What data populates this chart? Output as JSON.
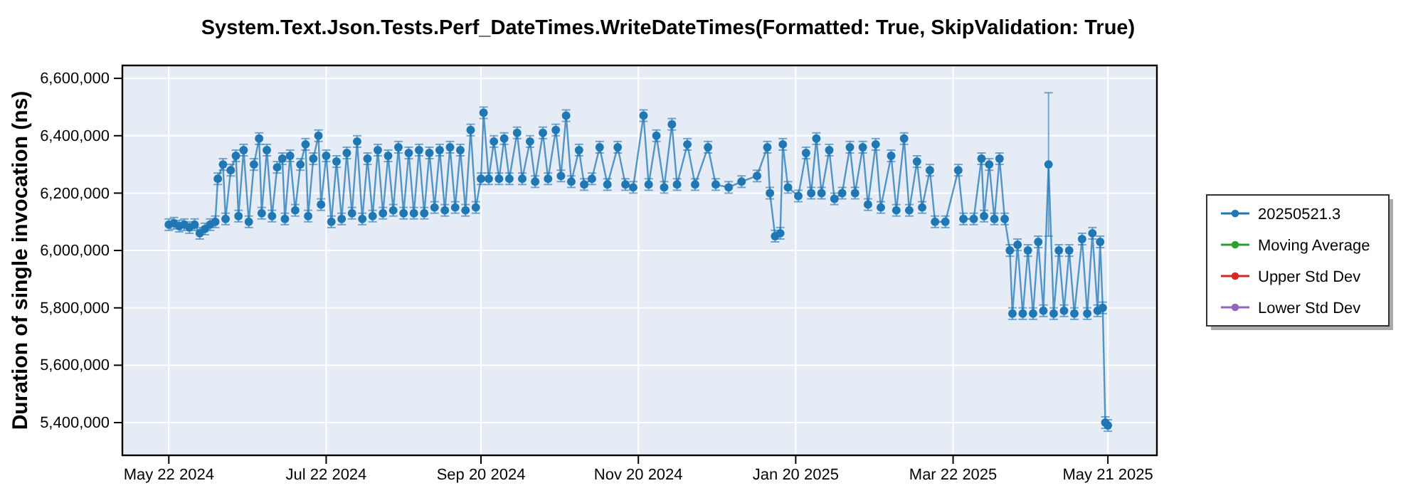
{
  "chart_data": {
    "type": "line",
    "title": "System.Text.Json.Tests.Perf_DateTimes.WriteDateTimes(Formatted: True, SkipValidation: True)",
    "ylabel": "Duration of single invocation (ns)",
    "xlim": [
      "2024-05-04",
      "2025-06-09"
    ],
    "xticks": [
      {
        "value": "2024-05-22",
        "label": "May 22 2024"
      },
      {
        "value": "2024-07-22",
        "label": "Jul 22 2024"
      },
      {
        "value": "2024-09-20",
        "label": "Sep 20 2024"
      },
      {
        "value": "2024-11-20",
        "label": "Nov 20 2024"
      },
      {
        "value": "2025-01-20",
        "label": "Jan 20 2025"
      },
      {
        "value": "2025-03-22",
        "label": "Mar 22 2025"
      },
      {
        "value": "2025-05-21",
        "label": "May 21 2025"
      }
    ],
    "ylim": [
      5286000,
      6645000
    ],
    "yticks": [
      {
        "value": 5400000,
        "label": "5,400,000"
      },
      {
        "value": 5600000,
        "label": "5,600,000"
      },
      {
        "value": 5800000,
        "label": "5,800,000"
      },
      {
        "value": 6000000,
        "label": "6,000,000"
      },
      {
        "value": 6200000,
        "label": "6,200,000"
      },
      {
        "value": 6400000,
        "label": "6,400,000"
      },
      {
        "value": 6600000,
        "label": "6,600,000"
      }
    ],
    "grid": true,
    "legend": "right",
    "marker": "circle",
    "line_style": "solid",
    "series": [
      {
        "name": "20250521.3",
        "color": "#1f77b4",
        "x": [
          "2024-05-22",
          "2024-05-24",
          "2024-05-26",
          "2024-05-28",
          "2024-05-30",
          "2024-06-01",
          "2024-06-03",
          "2024-06-05",
          "2024-06-07",
          "2024-06-09",
          "2024-06-10",
          "2024-06-12",
          "2024-06-13",
          "2024-06-15",
          "2024-06-17",
          "2024-06-18",
          "2024-06-20",
          "2024-06-22",
          "2024-06-24",
          "2024-06-26",
          "2024-06-27",
          "2024-06-29",
          "2024-07-01",
          "2024-07-03",
          "2024-07-05",
          "2024-07-06",
          "2024-07-08",
          "2024-07-10",
          "2024-07-12",
          "2024-07-14",
          "2024-07-15",
          "2024-07-17",
          "2024-07-19",
          "2024-07-20",
          "2024-07-22",
          "2024-07-24",
          "2024-07-26",
          "2024-07-28",
          "2024-07-30",
          "2024-08-01",
          "2024-08-03",
          "2024-08-05",
          "2024-08-07",
          "2024-08-09",
          "2024-08-11",
          "2024-08-13",
          "2024-08-15",
          "2024-08-17",
          "2024-08-19",
          "2024-08-21",
          "2024-08-23",
          "2024-08-25",
          "2024-08-27",
          "2024-08-29",
          "2024-08-31",
          "2024-09-02",
          "2024-09-04",
          "2024-09-06",
          "2024-09-08",
          "2024-09-10",
          "2024-09-12",
          "2024-09-14",
          "2024-09-16",
          "2024-09-18",
          "2024-09-20",
          "2024-09-21",
          "2024-09-23",
          "2024-09-25",
          "2024-09-27",
          "2024-09-29",
          "2024-10-01",
          "2024-10-04",
          "2024-10-06",
          "2024-10-09",
          "2024-10-11",
          "2024-10-14",
          "2024-10-16",
          "2024-10-19",
          "2024-10-21",
          "2024-10-23",
          "2024-10-25",
          "2024-10-28",
          "2024-10-30",
          "2024-11-02",
          "2024-11-05",
          "2024-11-08",
          "2024-11-12",
          "2024-11-15",
          "2024-11-18",
          "2024-11-22",
          "2024-11-24",
          "2024-11-27",
          "2024-11-30",
          "2024-12-03",
          "2024-12-05",
          "2024-12-09",
          "2024-12-12",
          "2024-12-17",
          "2024-12-20",
          "2024-12-25",
          "2024-12-30",
          "2025-01-05",
          "2025-01-09",
          "2025-01-10",
          "2025-01-12",
          "2025-01-14",
          "2025-01-15",
          "2025-01-17",
          "2025-01-21",
          "2025-01-24",
          "2025-01-26",
          "2025-01-28",
          "2025-01-30",
          "2025-02-02",
          "2025-02-04",
          "2025-02-07",
          "2025-02-10",
          "2025-02-12",
          "2025-02-15",
          "2025-02-17",
          "2025-02-20",
          "2025-02-22",
          "2025-02-26",
          "2025-02-28",
          "2025-03-03",
          "2025-03-05",
          "2025-03-08",
          "2025-03-10",
          "2025-03-13",
          "2025-03-15",
          "2025-03-19",
          "2025-03-24",
          "2025-03-26",
          "2025-03-30",
          "2025-04-02",
          "2025-04-03",
          "2025-04-05",
          "2025-04-07",
          "2025-04-09",
          "2025-04-11",
          "2025-04-13",
          "2025-04-14",
          "2025-04-16",
          "2025-04-18",
          "2025-04-20",
          "2025-04-22",
          "2025-04-24",
          "2025-04-26",
          "2025-04-28",
          "2025-04-30",
          "2025-05-02",
          "2025-05-04",
          "2025-05-06",
          "2025-05-08",
          "2025-05-11",
          "2025-05-13",
          "2025-05-15",
          "2025-05-17",
          "2025-05-18",
          "2025-05-19",
          "2025-05-20",
          "2025-05-21"
        ],
        "values": [
          6090000,
          6095000,
          6085000,
          6090000,
          6080000,
          6090000,
          6060000,
          6075000,
          6090000,
          6100000,
          6250000,
          6300000,
          6110000,
          6280000,
          6330000,
          6120000,
          6350000,
          6100000,
          6300000,
          6390000,
          6130000,
          6350000,
          6120000,
          6290000,
          6320000,
          6110000,
          6330000,
          6140000,
          6300000,
          6370000,
          6120000,
          6320000,
          6400000,
          6160000,
          6330000,
          6100000,
          6310000,
          6110000,
          6340000,
          6130000,
          6380000,
          6110000,
          6320000,
          6120000,
          6350000,
          6130000,
          6330000,
          6140000,
          6360000,
          6130000,
          6340000,
          6130000,
          6350000,
          6130000,
          6340000,
          6150000,
          6350000,
          6140000,
          6360000,
          6150000,
          6350000,
          6140000,
          6420000,
          6150000,
          6250000,
          6480000,
          6250000,
          6380000,
          6250000,
          6390000,
          6250000,
          6410000,
          6250000,
          6380000,
          6240000,
          6410000,
          6250000,
          6420000,
          6260000,
          6470000,
          6240000,
          6350000,
          6230000,
          6250000,
          6360000,
          6230000,
          6360000,
          6230000,
          6220000,
          6470000,
          6230000,
          6400000,
          6220000,
          6440000,
          6230000,
          6370000,
          6230000,
          6360000,
          6230000,
          6220000,
          6240000,
          6260000,
          6360000,
          6200000,
          6050000,
          6060000,
          6370000,
          6220000,
          6190000,
          6340000,
          6200000,
          6390000,
          6200000,
          6350000,
          6180000,
          6200000,
          6360000,
          6200000,
          6360000,
          6160000,
          6370000,
          6150000,
          6330000,
          6140000,
          6390000,
          6140000,
          6310000,
          6150000,
          6280000,
          6100000,
          6100000,
          6280000,
          6110000,
          6110000,
          6320000,
          6120000,
          6300000,
          6110000,
          6320000,
          6110000,
          6000000,
          5780000,
          6020000,
          5780000,
          6000000,
          5780000,
          6030000,
          5790000,
          6300000,
          5780000,
          6000000,
          5790000,
          6000000,
          5780000,
          6040000,
          5780000,
          6060000,
          5790000,
          6030000,
          5800000,
          5400000,
          5390000
        ],
        "errors": [
          20000,
          20000,
          20000,
          20000,
          20000,
          20000,
          20000,
          20000,
          20000,
          20000,
          20000,
          20000,
          20000,
          20000,
          20000,
          20000,
          20000,
          20000,
          20000,
          20000,
          20000,
          20000,
          20000,
          20000,
          20000,
          20000,
          20000,
          20000,
          20000,
          20000,
          20000,
          20000,
          20000,
          20000,
          20000,
          20000,
          20000,
          20000,
          20000,
          20000,
          20000,
          20000,
          20000,
          20000,
          20000,
          20000,
          20000,
          20000,
          20000,
          20000,
          20000,
          20000,
          20000,
          20000,
          20000,
          20000,
          20000,
          20000,
          20000,
          20000,
          20000,
          20000,
          20000,
          20000,
          20000,
          20000,
          20000,
          20000,
          20000,
          20000,
          20000,
          20000,
          20000,
          20000,
          20000,
          20000,
          20000,
          20000,
          20000,
          20000,
          20000,
          20000,
          20000,
          20000,
          20000,
          20000,
          20000,
          20000,
          20000,
          20000,
          20000,
          20000,
          20000,
          20000,
          20000,
          20000,
          20000,
          20000,
          20000,
          20000,
          20000,
          20000,
          20000,
          20000,
          20000,
          20000,
          20000,
          20000,
          20000,
          20000,
          20000,
          20000,
          20000,
          20000,
          20000,
          20000,
          20000,
          20000,
          20000,
          20000,
          20000,
          20000,
          20000,
          20000,
          20000,
          20000,
          20000,
          20000,
          20000,
          20000,
          20000,
          20000,
          20000,
          20000,
          20000,
          20000,
          20000,
          20000,
          20000,
          20000,
          20000,
          20000,
          20000,
          20000,
          20000,
          20000,
          20000,
          20000,
          250000,
          20000,
          20000,
          20000,
          20000,
          20000,
          20000,
          20000,
          20000,
          20000,
          20000,
          20000,
          20000,
          20000
        ]
      },
      {
        "name": "Moving Average",
        "color": "#2ca02c"
      },
      {
        "name": "Upper Std Dev",
        "color": "#d62728"
      },
      {
        "name": "Lower Std Dev",
        "color": "#9467bd"
      }
    ]
  }
}
